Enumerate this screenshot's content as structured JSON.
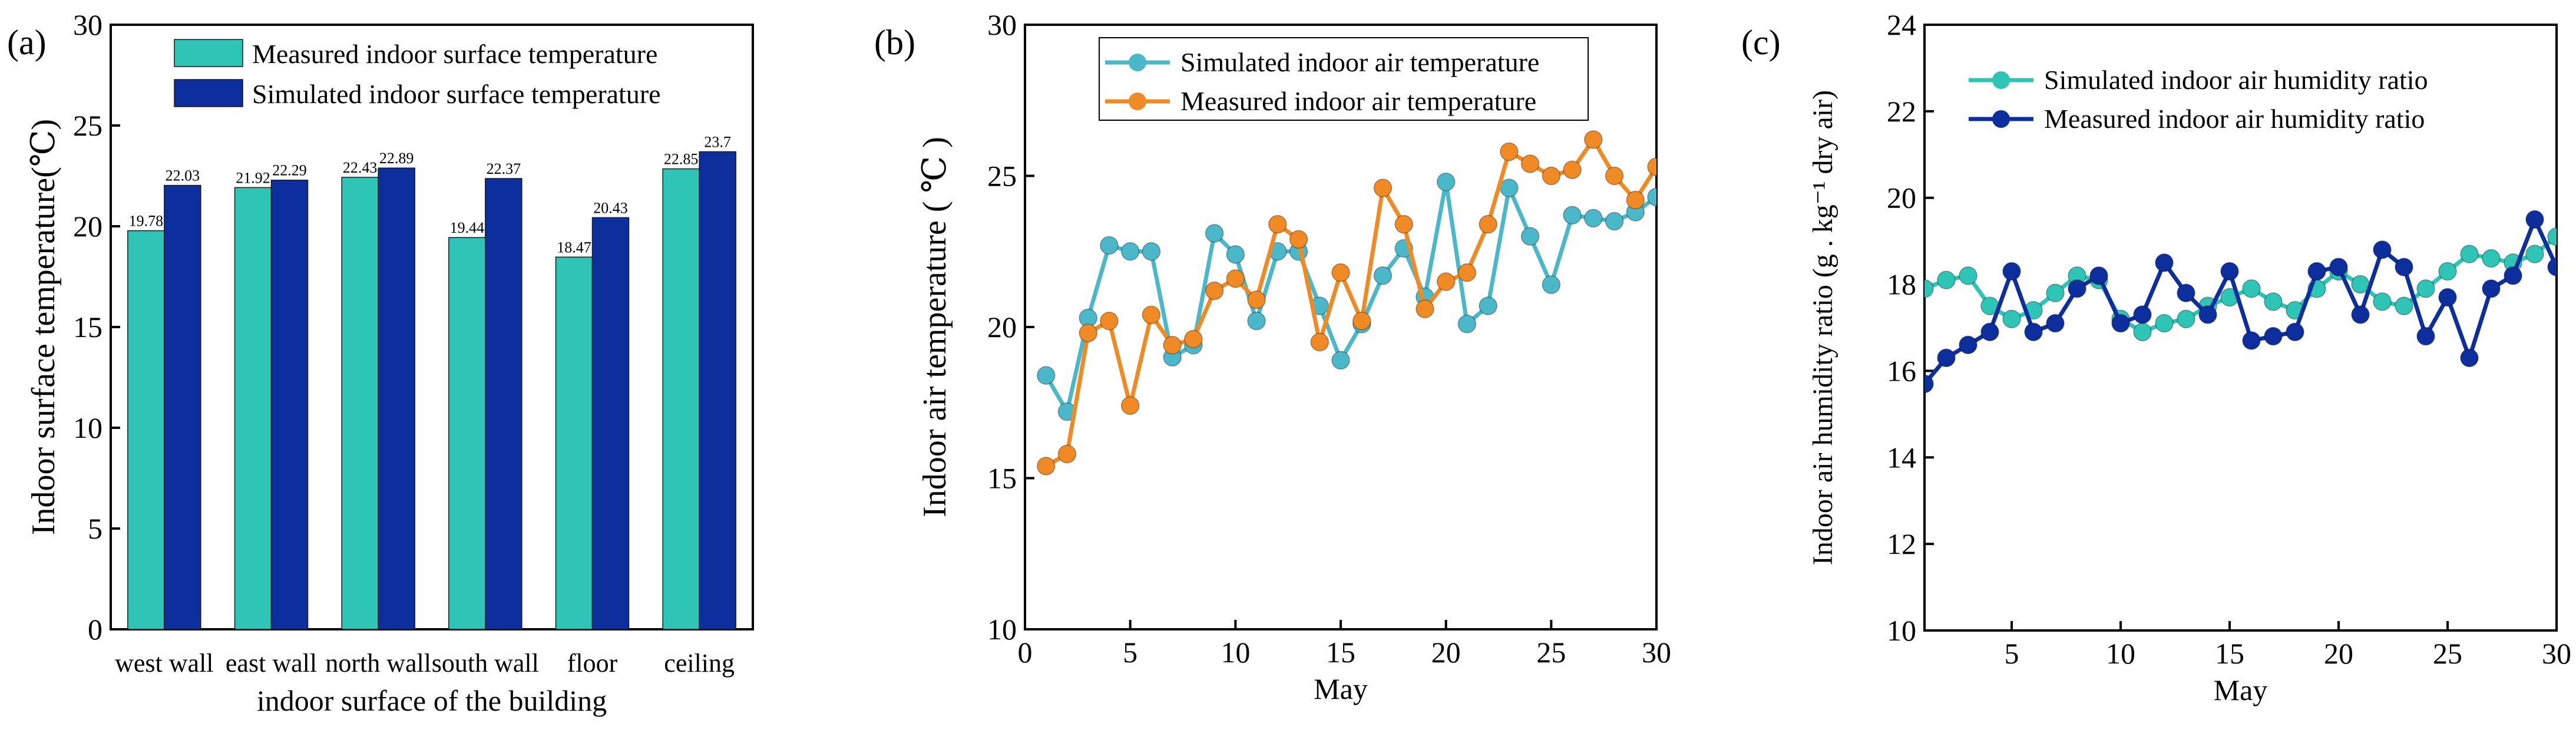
{
  "chart_data": [
    {
      "type": "bar",
      "panel_label": "(a)",
      "title": "",
      "xlabel": "indoor surface of the building",
      "ylabel": "Indoor surface temperature(℃)",
      "ylim": [
        0,
        30
      ],
      "yticks": [
        0,
        5,
        10,
        15,
        20,
        25,
        30
      ],
      "categories": [
        "west wall",
        "east wall",
        "north wall",
        "south wall",
        "floor",
        "ceiling"
      ],
      "series": [
        {
          "name": "Measured indoor surface temperature",
          "color": "#2ec4b6",
          "values": [
            19.78,
            21.92,
            22.43,
            19.44,
            18.47,
            22.85
          ],
          "labels": [
            "19.78",
            "21.92",
            "22.43",
            "19.44",
            "18.47",
            "22.85"
          ]
        },
        {
          "name": "Simulated indoor surface temperature",
          "color": "#0d2f9e",
          "values": [
            22.03,
            22.29,
            22.89,
            22.37,
            20.43,
            23.7
          ],
          "labels": [
            "22.03",
            "22.29",
            "22.89",
            "22.37",
            "20.43",
            "23.7"
          ]
        }
      ],
      "legend": "top-left",
      "grid": false
    },
    {
      "type": "line",
      "panel_label": "(b)",
      "title": "",
      "xlabel": "May",
      "ylabel": "Indoor air temperature ( ℃ )",
      "xlim": [
        0,
        30
      ],
      "ylim": [
        10,
        30
      ],
      "xticks": [
        0,
        5,
        10,
        15,
        20,
        25,
        30
      ],
      "yticks": [
        10,
        15,
        20,
        25,
        30
      ],
      "x": [
        1,
        2,
        3,
        4,
        5,
        6,
        7,
        8,
        9,
        10,
        11,
        12,
        13,
        14,
        15,
        16,
        17,
        18,
        19,
        20,
        21,
        22,
        23,
        24,
        25,
        26,
        27,
        28,
        29,
        30
      ],
      "series": [
        {
          "name": "Simulated indoor air temperature",
          "color": "#4ab8c8",
          "values": [
            18.4,
            17.2,
            20.3,
            22.7,
            22.5,
            22.5,
            19.0,
            19.4,
            23.1,
            22.4,
            20.2,
            22.5,
            22.5,
            20.7,
            18.9,
            20.1,
            21.7,
            22.6,
            21.0,
            24.8,
            20.1,
            20.7,
            24.6,
            23.0,
            21.4,
            23.7,
            23.6,
            23.5,
            23.8,
            24.3
          ]
        },
        {
          "name": "Measured indoor air temperature",
          "color": "#f08a24",
          "values": [
            15.4,
            15.8,
            19.8,
            20.2,
            17.4,
            20.4,
            19.4,
            19.6,
            21.2,
            21.6,
            20.9,
            23.4,
            22.9,
            19.5,
            21.8,
            20.2,
            24.6,
            23.4,
            20.6,
            21.5,
            21.8,
            23.4,
            25.8,
            25.4,
            25.0,
            25.2,
            26.2,
            25.0,
            24.2,
            25.3
          ]
        }
      ],
      "legend": "top-center",
      "grid": false
    },
    {
      "type": "line",
      "panel_label": "(c)",
      "title": "",
      "xlabel": "May",
      "ylabel": "Indoor air humidity ratio (g . kg⁻¹ dry air)",
      "xlim": [
        1,
        30
      ],
      "ylim": [
        10,
        24
      ],
      "xticks": [
        5,
        10,
        15,
        20,
        25,
        30
      ],
      "yticks": [
        10,
        12,
        14,
        16,
        18,
        20,
        22,
        24
      ],
      "x": [
        1,
        2,
        3,
        4,
        5,
        6,
        7,
        8,
        9,
        10,
        11,
        12,
        13,
        14,
        15,
        16,
        17,
        18,
        19,
        20,
        21,
        22,
        23,
        24,
        25,
        26,
        27,
        28,
        29,
        30
      ],
      "series": [
        {
          "name": "Simulated indoor air humidity ratio",
          "color": "#2ec4b6",
          "values": [
            17.9,
            18.1,
            18.2,
            17.5,
            17.2,
            17.4,
            17.8,
            18.2,
            18.1,
            17.2,
            16.9,
            17.1,
            17.2,
            17.5,
            17.7,
            17.9,
            17.6,
            17.4,
            17.9,
            18.3,
            18.0,
            17.6,
            17.5,
            17.9,
            18.3,
            18.7,
            18.6,
            18.5,
            18.7,
            19.1
          ]
        },
        {
          "name": "Measured indoor air humidity ratio",
          "color": "#0d2f9e",
          "values": [
            15.7,
            16.3,
            16.6,
            16.9,
            18.3,
            16.9,
            17.1,
            17.9,
            18.2,
            17.1,
            17.3,
            18.5,
            17.8,
            17.3,
            18.3,
            16.7,
            16.8,
            16.9,
            18.3,
            18.4,
            17.3,
            18.8,
            18.4,
            16.8,
            17.7,
            16.3,
            17.9,
            18.2,
            19.5,
            18.4
          ]
        }
      ],
      "legend": "top-left",
      "grid": false
    }
  ]
}
